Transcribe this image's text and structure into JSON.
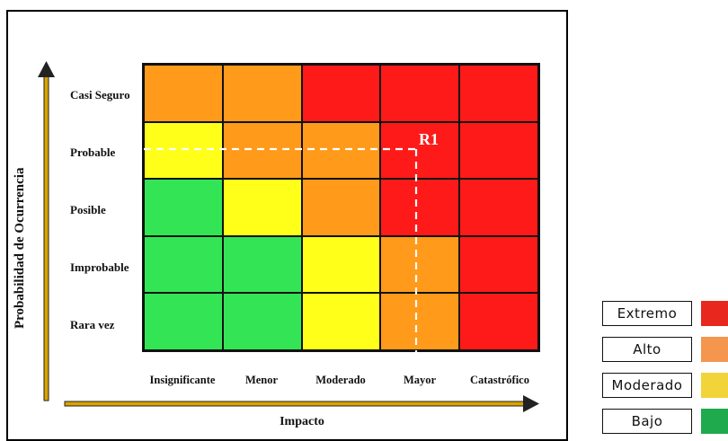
{
  "matrix": {
    "y_title": "Probabilidad de Ocurrencia",
    "x_title": "Impacto",
    "rows": [
      "Casi Seguro",
      "Probable",
      "Posible",
      "Improbable",
      "Rara vez"
    ],
    "columns": [
      "Insignificante",
      "Menor",
      "Moderado",
      "Mayor",
      "Catastrófico"
    ],
    "cells": [
      [
        "alto",
        "alto",
        "extremo",
        "extremo",
        "extremo"
      ],
      [
        "moderado",
        "alto",
        "alto",
        "extremo",
        "extremo"
      ],
      [
        "bajo",
        "moderado",
        "alto",
        "extremo",
        "extremo"
      ],
      [
        "bajo",
        "bajo",
        "moderado",
        "alto",
        "extremo"
      ],
      [
        "bajo",
        "bajo",
        "moderado",
        "alto",
        "extremo"
      ]
    ],
    "marker": {
      "label": "R1",
      "row": "Probable",
      "column": "Mayor"
    }
  },
  "colors": {
    "extremo": "#ff1a1a",
    "alto": "#ff9a1a",
    "moderado": "#ffff1a",
    "bajo": "#33e555",
    "arrow": "#d9a400",
    "legend_extremo": "#e8281e",
    "legend_alto": "#f4964e",
    "legend_moderado": "#f2d33a",
    "legend_bajo": "#1eaa4d"
  },
  "legend": [
    {
      "label": "Extremo",
      "color_key": "legend_extremo"
    },
    {
      "label": "Alto",
      "color_key": "legend_alto"
    },
    {
      "label": "Moderado",
      "color_key": "legend_moderado"
    },
    {
      "label": "Bajo",
      "color_key": "legend_bajo"
    }
  ]
}
